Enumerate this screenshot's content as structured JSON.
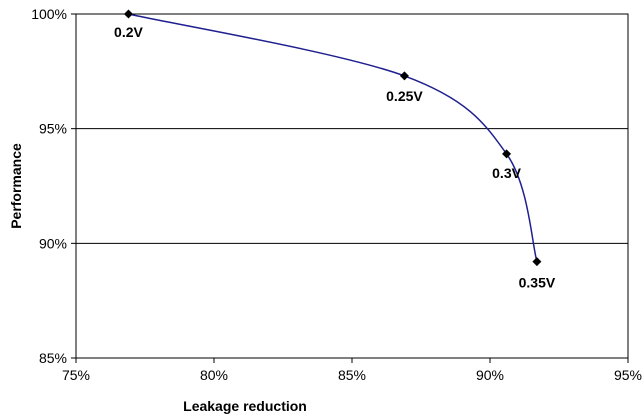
{
  "chart_data": {
    "type": "line",
    "xlabel": "Leakage reduction",
    "ylabel": "Performance",
    "xlim": [
      75,
      95
    ],
    "ylim": [
      85,
      100
    ],
    "x_ticks": [
      75,
      80,
      85,
      90,
      95
    ],
    "y_ticks": [
      85,
      90,
      95,
      100
    ],
    "x_tick_labels": [
      "75%",
      "80%",
      "85%",
      "90%",
      "95%"
    ],
    "y_tick_labels": [
      "85%",
      "90%",
      "95%",
      "100%"
    ],
    "grid": "horizontal",
    "legend": "none",
    "series": [
      {
        "x": [
          76.9,
          86.9,
          90.6,
          91.7
        ],
        "y": [
          100.0,
          97.3,
          93.9,
          89.2
        ],
        "point_labels": [
          "0.2V",
          "0.25V",
          "0.3V",
          "0.35V"
        ],
        "line_color": "#1f1f8f",
        "marker_color": "#000000"
      }
    ]
  }
}
